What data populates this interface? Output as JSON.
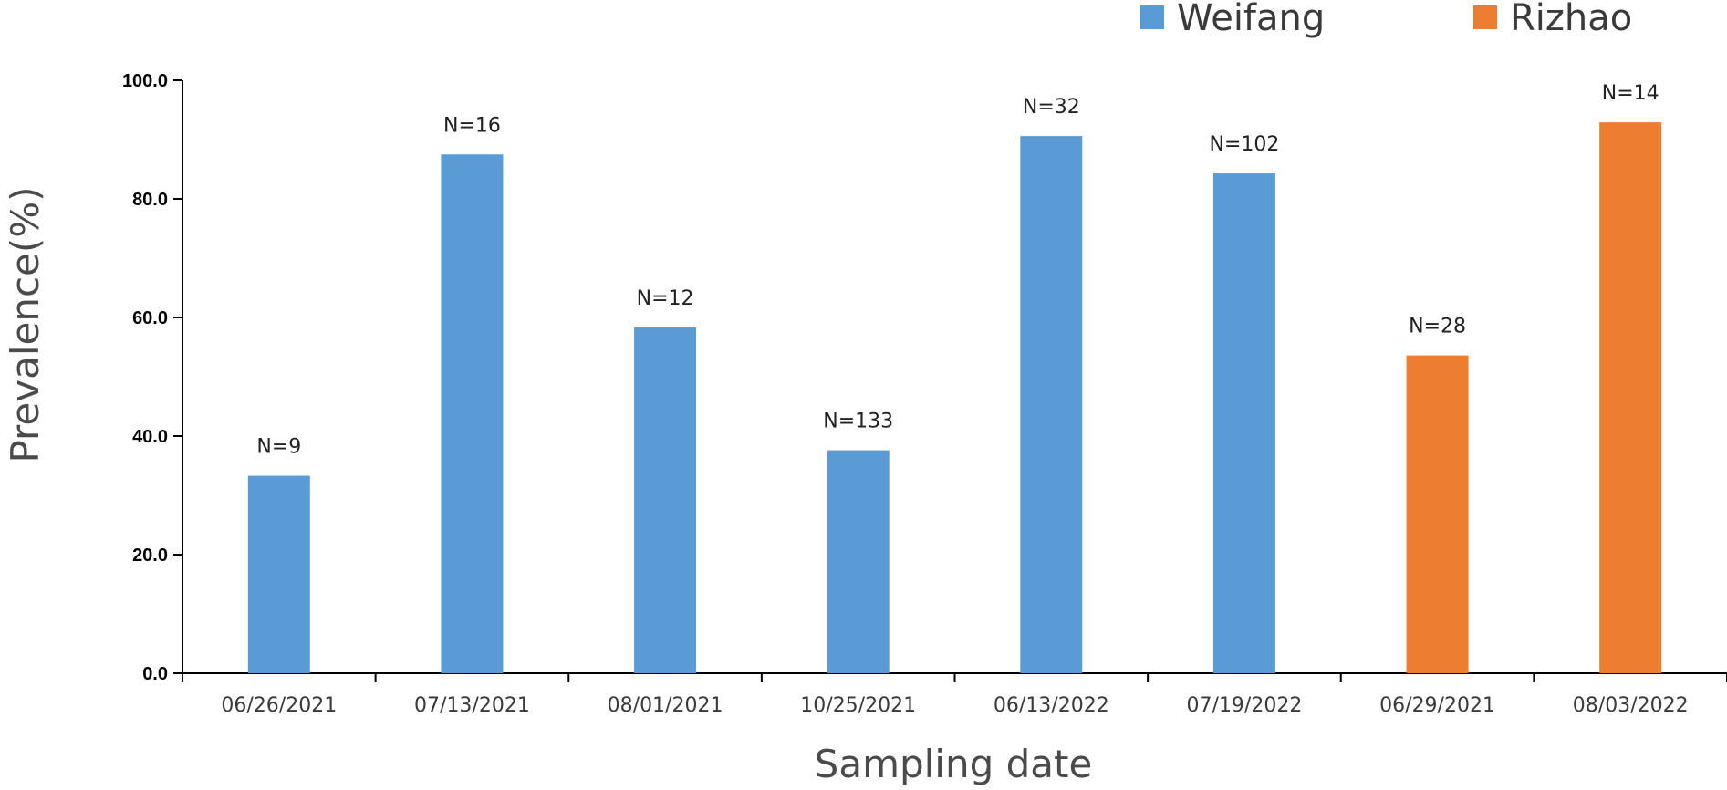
{
  "chart_data": {
    "type": "bar",
    "xlabel": "Sampling date",
    "ylabel": "Prevalence(%)",
    "ylim": [
      0,
      100
    ],
    "yticks": [
      "0.0",
      "20.0",
      "40.0",
      "60.0",
      "80.0",
      "100.0"
    ],
    "grid": false,
    "legend_position": "top-right",
    "categories": [
      "06/26/2021",
      "07/13/2021",
      "08/01/2021",
      "10/25/2021",
      "06/13/2022",
      "07/19/2022",
      "06/29/2021",
      "08/03/2022"
    ],
    "values": [
      33.3,
      87.5,
      58.3,
      37.6,
      90.6,
      84.3,
      53.6,
      92.9
    ],
    "data_labels": [
      "N=9",
      "N=16",
      "N=12",
      "N=133",
      "N=32",
      "N=102",
      "N=28",
      "N=14"
    ],
    "bar_series": [
      "Weifang",
      "Weifang",
      "Weifang",
      "Weifang",
      "Weifang",
      "Weifang",
      "Rizhao",
      "Rizhao"
    ],
    "series": [
      {
        "name": "Weifang",
        "color": "#5B9BD5"
      },
      {
        "name": "Rizhao",
        "color": "#ED7D31"
      }
    ]
  }
}
